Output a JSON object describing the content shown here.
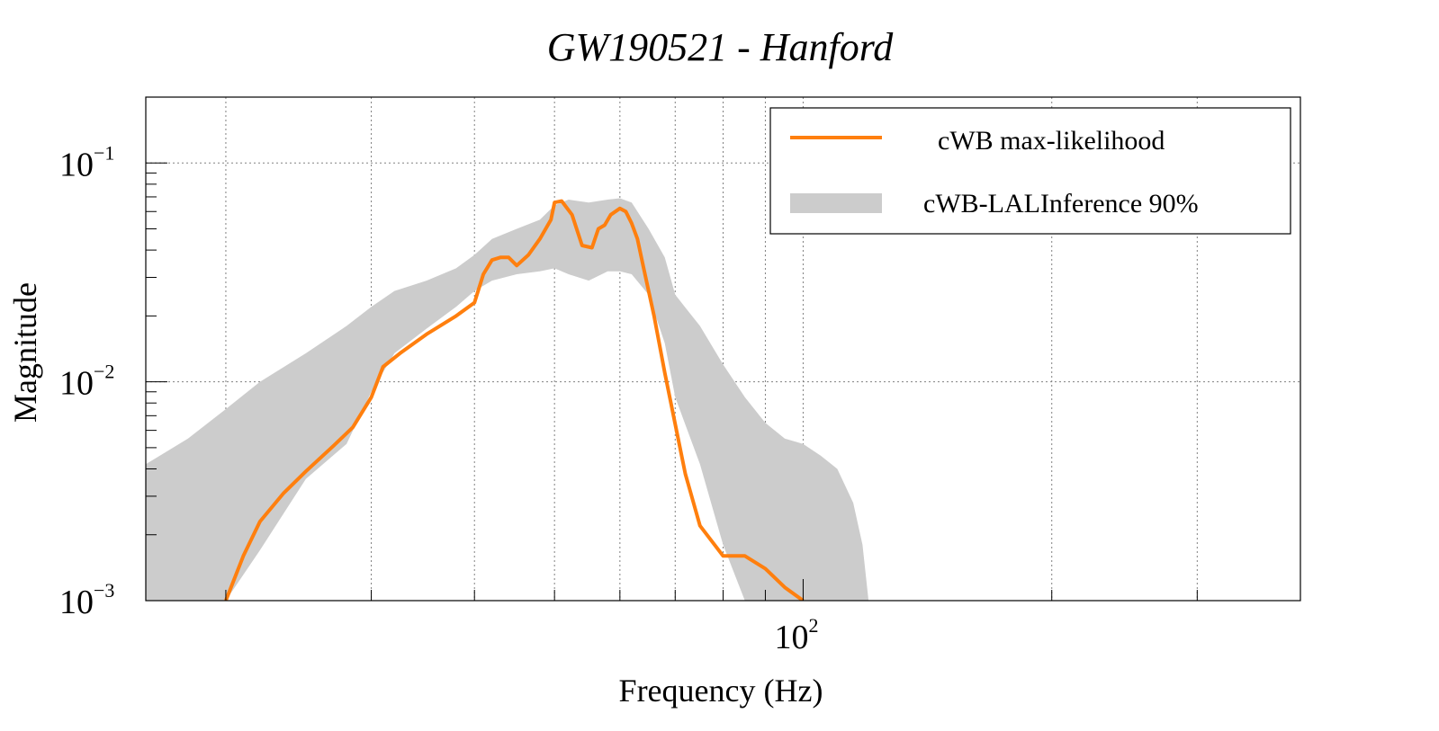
{
  "chart_data": {
    "type": "area",
    "title": "GW190521 - Hanford",
    "xlabel": "Frequency (Hz)",
    "ylabel": "Magnitude",
    "x_scale": "log",
    "y_scale": "log",
    "xlim": [
      16,
      400
    ],
    "ylim": [
      0.001,
      0.2
    ],
    "grid": true,
    "legend_position": "top-right",
    "x_tick_labels": [
      {
        "value": 100,
        "base": "10",
        "exp": "2"
      }
    ],
    "y_tick_labels": [
      {
        "value": 0.1,
        "base": "10",
        "exp": "−1"
      },
      {
        "value": 0.01,
        "base": "10",
        "exp": "−2"
      },
      {
        "value": 0.001,
        "base": "10",
        "exp": "−3"
      }
    ],
    "colors": {
      "line": "#ff7f0e",
      "band": "#cccccc",
      "axes": "#000000",
      "grid": "#808080"
    },
    "series": [
      {
        "name": "cWB max-likelihood",
        "kind": "line",
        "x": [
          20.0,
          21.0,
          22.0,
          23.5,
          25.0,
          27.0,
          28.5,
          30.0,
          31.0,
          32.5,
          35.0,
          38.0,
          40.0,
          41.0,
          42.0,
          43.0,
          44.0,
          45.0,
          46.5,
          48.0,
          49.5,
          50.0,
          51.0,
          52.5,
          54.0,
          55.5,
          56.5,
          57.5,
          58.5,
          60.0,
          61.0,
          62.0,
          63.0,
          64.0,
          66.0,
          68.0,
          70.0,
          72.0,
          75.0,
          80.0,
          85.0,
          90.0,
          95.0,
          100.0
        ],
        "y": [
          0.001,
          0.0016,
          0.0023,
          0.0031,
          0.0039,
          0.0051,
          0.0062,
          0.0085,
          0.0117,
          0.0135,
          0.0165,
          0.02,
          0.023,
          0.031,
          0.036,
          0.037,
          0.037,
          0.034,
          0.038,
          0.045,
          0.055,
          0.066,
          0.067,
          0.058,
          0.042,
          0.041,
          0.05,
          0.052,
          0.058,
          0.062,
          0.06,
          0.053,
          0.045,
          0.034,
          0.02,
          0.011,
          0.0064,
          0.0038,
          0.0022,
          0.0016,
          0.0016,
          0.0014,
          0.00115,
          0.001
        ]
      },
      {
        "name": "cWB-LALInference 90%",
        "kind": "band",
        "x": [
          16.0,
          18.0,
          20.0,
          22.0,
          25.0,
          28.0,
          30.0,
          32.0,
          35.0,
          38.0,
          40.0,
          42.0,
          45.0,
          48.0,
          50.0,
          52.0,
          55.0,
          58.0,
          60.0,
          62.0,
          65.0,
          68.0,
          70.0,
          75.0,
          80.0,
          85.0,
          90.0,
          95.0,
          100.0,
          105.0,
          110.0,
          115.0,
          118.0,
          120.0
        ],
        "lower": [
          0.001,
          0.001,
          0.001,
          0.0017,
          0.0036,
          0.0052,
          0.009,
          0.0135,
          0.0175,
          0.022,
          0.026,
          0.029,
          0.031,
          0.032,
          0.033,
          0.031,
          0.029,
          0.032,
          0.032,
          0.031,
          0.025,
          0.015,
          0.0085,
          0.0042,
          0.0018,
          0.001,
          0.001,
          0.001,
          0.001,
          0.001,
          0.001,
          0.001,
          0.001,
          0.001
        ],
        "upper": [
          0.0042,
          0.0055,
          0.0075,
          0.01,
          0.0135,
          0.018,
          0.022,
          0.026,
          0.029,
          0.033,
          0.038,
          0.045,
          0.05,
          0.055,
          0.064,
          0.068,
          0.066,
          0.068,
          0.069,
          0.066,
          0.05,
          0.037,
          0.025,
          0.018,
          0.012,
          0.0085,
          0.0065,
          0.0055,
          0.0052,
          0.0046,
          0.004,
          0.0028,
          0.0018,
          0.001
        ]
      }
    ]
  }
}
